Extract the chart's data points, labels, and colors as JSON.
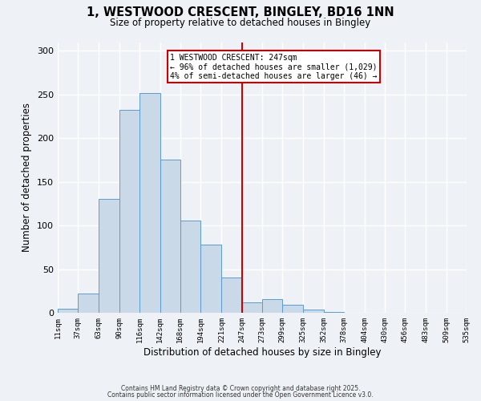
{
  "title": "1, WESTWOOD CRESCENT, BINGLEY, BD16 1NN",
  "subtitle": "Size of property relative to detached houses in Bingley",
  "xlabel": "Distribution of detached houses by size in Bingley",
  "ylabel": "Number of detached properties",
  "bar_edges": [
    11,
    37,
    63,
    90,
    116,
    142,
    168,
    194,
    221,
    247,
    273,
    299,
    325,
    352,
    378,
    404,
    430,
    456,
    483,
    509,
    535
  ],
  "bar_heights": [
    5,
    22,
    130,
    232,
    252,
    175,
    106,
    78,
    40,
    12,
    16,
    9,
    4,
    1,
    0,
    0,
    0,
    0,
    0,
    0
  ],
  "bar_color": "#c9d9e8",
  "bar_edge_color": "#5b9bd5",
  "vline_x": 247,
  "vline_color": "#cc0000",
  "annotation_text_line1": "1 WESTWOOD CRESCENT: 247sqm",
  "annotation_text_line2": "← 96% of detached houses are smaller (1,029)",
  "annotation_text_line3": "4% of semi-detached houses are larger (46) →",
  "annotation_box_color": "#cc0000",
  "annotation_fill": "#ffffff",
  "ylim": [
    0,
    310
  ],
  "xlim": [
    11,
    535
  ],
  "tick_labels": [
    "11sqm",
    "37sqm",
    "63sqm",
    "90sqm",
    "116sqm",
    "142sqm",
    "168sqm",
    "194sqm",
    "221sqm",
    "247sqm",
    "273sqm",
    "299sqm",
    "325sqm",
    "352sqm",
    "378sqm",
    "404sqm",
    "430sqm",
    "456sqm",
    "483sqm",
    "509sqm",
    "535sqm"
  ],
  "tick_positions": [
    11,
    37,
    63,
    90,
    116,
    142,
    168,
    194,
    221,
    247,
    273,
    299,
    325,
    352,
    378,
    404,
    430,
    456,
    483,
    509,
    535
  ],
  "ytick_positions": [
    0,
    50,
    100,
    150,
    200,
    250,
    300
  ],
  "ytick_labels": [
    "0",
    "50",
    "100",
    "150",
    "200",
    "250",
    "300"
  ],
  "bg_color": "#eef2f7",
  "grid_color": "#ffffff",
  "footer_line1": "Contains HM Land Registry data © Crown copyright and database right 2025.",
  "footer_line2": "Contains public sector information licensed under the Open Government Licence v3.0."
}
